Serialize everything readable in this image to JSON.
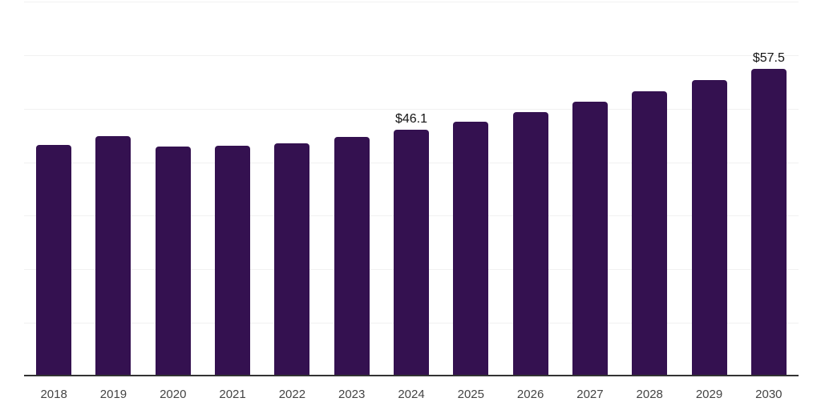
{
  "chart": {
    "background": "#ffffff",
    "bar_color": "#341150",
    "gridline_color": "#f1f1f1",
    "axis_line_color": "#333333",
    "tick_label_color": "#444444",
    "data_label_color": "#141414"
  },
  "chart_data": {
    "type": "bar",
    "title": "",
    "xlabel": "",
    "ylabel": "",
    "categories": [
      "2018",
      "2019",
      "2020",
      "2021",
      "2022",
      "2023",
      "2024",
      "2025",
      "2026",
      "2027",
      "2028",
      "2029",
      "2030"
    ],
    "values": [
      43.2,
      44.8,
      42.9,
      43.1,
      43.6,
      44.7,
      46.1,
      47.6,
      49.4,
      51.3,
      53.2,
      55.3,
      57.5
    ],
    "data_labels": [
      {
        "category": "2024",
        "text": "$46.1"
      },
      {
        "category": "2030",
        "text": "$57.5"
      }
    ],
    "currency_prefix": "$",
    "ylim": [
      0,
      70
    ],
    "grid_interval": 10,
    "grid": "horizontal",
    "y_axis_labels": "none",
    "legend": "none"
  }
}
